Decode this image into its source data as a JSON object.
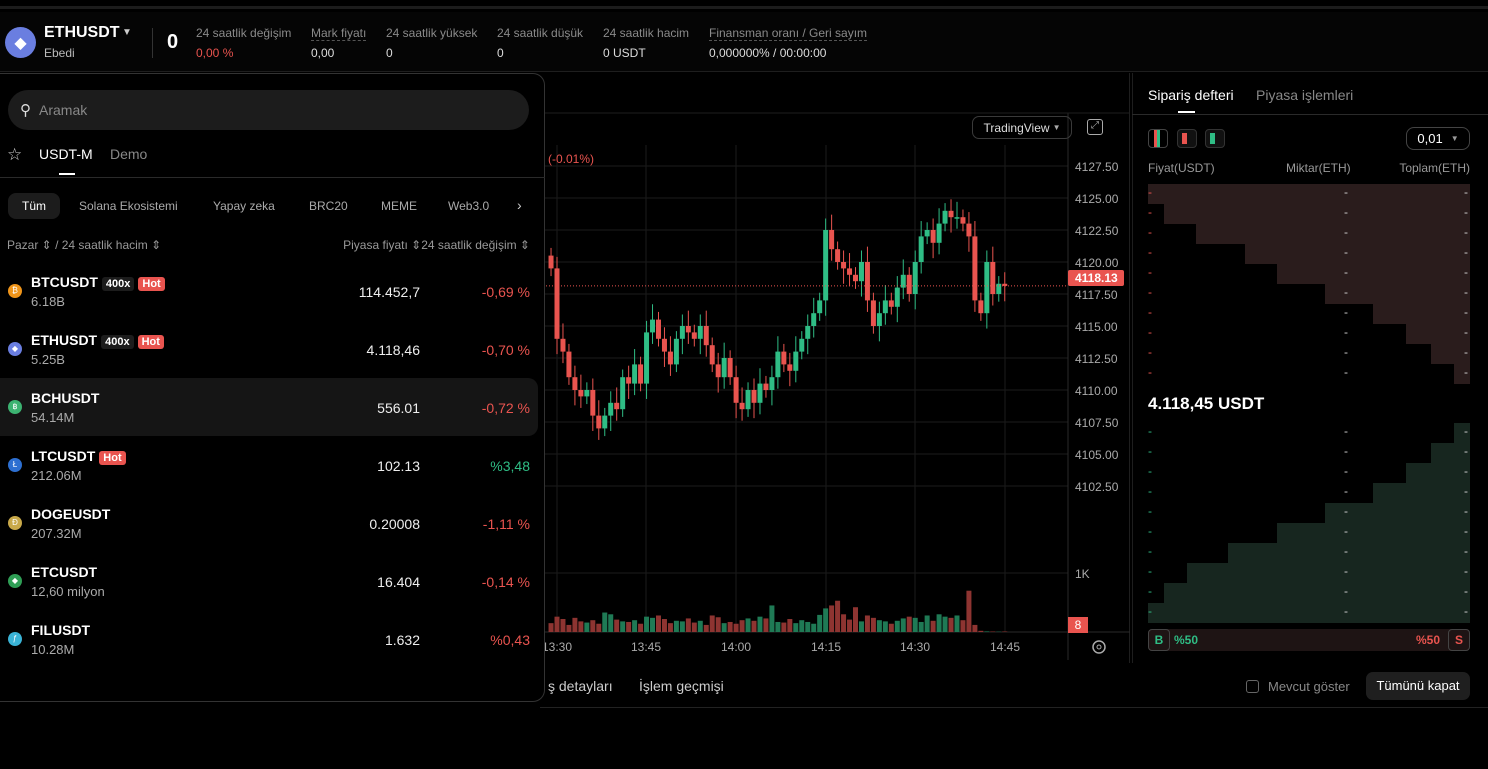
{
  "header": {
    "symbol": "ETHUSDT",
    "type": "Ebedi",
    "last_price": "0",
    "stats": [
      {
        "label": "24 saatlik değişim",
        "value": "0,00 %",
        "color": "red",
        "underline": false
      },
      {
        "label": "Mark fiyatı",
        "value": "0,00",
        "underline": true
      },
      {
        "label": "24 saatlik yüksek",
        "value": "0",
        "underline": false
      },
      {
        "label": "24 saatlik düşük",
        "value": "0",
        "underline": false
      },
      {
        "label": "24 saatlik hacim",
        "value": "0 USDT",
        "underline": false
      },
      {
        "label": "Finansman oranı / Geri sayım",
        "value": "0,000000% / 00:00:00",
        "underline": true
      }
    ]
  },
  "market_panel": {
    "search_placeholder": "Aramak",
    "tabs": [
      "USDT-M",
      "Demo"
    ],
    "categories": [
      "Tüm",
      "Solana Ekosistemi",
      "Yapay zeka",
      "BRC20",
      "MEME",
      "Web3.0"
    ],
    "col_left": "Pazar ⇕ / 24 saatlik hacim ⇕",
    "col_right": "Piyasa fiyatı ⇕24 saatlik değişim ⇕",
    "rows": [
      {
        "name": "BTCUSDT",
        "vol": "6.18B",
        "price": "114.452,7",
        "change": "-0,69 %",
        "dir": "down",
        "lev": "400x",
        "hot": "Hot",
        "icon": "₿",
        "color": "#f0951a"
      },
      {
        "name": "ETHUSDT",
        "vol": "5.25B",
        "price": "4.118,46",
        "change": "-0,70 %",
        "dir": "down",
        "lev": "400x",
        "hot": "Hot",
        "icon": "◆",
        "color": "#6a7ee0"
      },
      {
        "name": "BCHUSDT",
        "vol": "54.14M",
        "price": "556.01",
        "change": "-0,72 %",
        "dir": "down",
        "icon": "฿",
        "color": "#3cb371",
        "selected": true
      },
      {
        "name": "LTCUSDT",
        "vol": "212.06M",
        "price": "102.13",
        "change": "%3,48",
        "dir": "up",
        "hot": "Hot",
        "icon": "Ł",
        "color": "#2d6fd1"
      },
      {
        "name": "DOGEUSDT",
        "vol": "207.32M",
        "price": "0.20008",
        "change": "-1,11 %",
        "dir": "down",
        "icon": "Ð",
        "color": "#c9a94a"
      },
      {
        "name": "ETCUSDT",
        "vol": "12,60 milyon",
        "price": "16.404",
        "change": "-0,14 %",
        "dir": "down",
        "icon": "◆",
        "color": "#2f9e55"
      },
      {
        "name": "FILUSDT",
        "vol": "10.28M",
        "price": "1.632",
        "change": "%0,43",
        "dir": "down",
        "icon": "ƒ",
        "color": "#3ab3d6"
      }
    ]
  },
  "chart": {
    "source_label": "TradingView",
    "change_label": "(-0.01%)",
    "last_price_label": "4118.13",
    "volume_label": "8",
    "volume_axis": "1K",
    "price_ticks": [
      "4127.50",
      "4125.00",
      "4122.50",
      "4120.00",
      "4117.50",
      "4115.00",
      "4112.50",
      "4110.00",
      "4107.50",
      "4105.00",
      "4102.50"
    ],
    "time_ticks": [
      "13:30",
      "13:45",
      "14:00",
      "14:15",
      "14:30",
      "14:45"
    ]
  },
  "chart_data": {
    "type": "candlestick",
    "interval": "1m",
    "start": "13:29",
    "first_open": 4120.5,
    "last_price": 4118.13,
    "closes": [
      4119.5,
      4114,
      4113,
      4111,
      4110,
      4109.5,
      4110,
      4108,
      4107,
      4108,
      4109,
      4108.5,
      4111,
      4110.5,
      4112,
      4110.5,
      4114.5,
      4115.5,
      4114,
      4113,
      4112,
      4114,
      4115,
      4114.5,
      4114,
      4115,
      4113.5,
      4112,
      4111,
      4112.5,
      4111,
      4109,
      4108.5,
      4110,
      4109,
      4110.5,
      4110,
      4111,
      4113,
      4112,
      4111.5,
      4113,
      4114,
      4115,
      4116,
      4117,
      4122.5,
      4121,
      4120,
      4119.5,
      4119,
      4118.5,
      4120,
      4117,
      4115,
      4116,
      4117,
      4116.5,
      4118,
      4119,
      4117.5,
      4120,
      4122,
      4122.5,
      4121.5,
      4123,
      4124,
      4123.5,
      4123.5,
      4123,
      4122,
      4117,
      4116,
      4120,
      4117.5,
      4118.3,
      4118.13
    ],
    "volumes": [
      150,
      260,
      220,
      120,
      240,
      180,
      160,
      200,
      140,
      330,
      300,
      210,
      180,
      170,
      200,
      140,
      260,
      240,
      280,
      220,
      150,
      190,
      180,
      230,
      160,
      190,
      120,
      280,
      250,
      150,
      170,
      140,
      200,
      230,
      190,
      260,
      230,
      450,
      170,
      160,
      220,
      150,
      200,
      170,
      140,
      290,
      400,
      450,
      530,
      300,
      210,
      420,
      180,
      280,
      240,
      200,
      180,
      140,
      190,
      230,
      260,
      240,
      170,
      280,
      190,
      300,
      260,
      240,
      280,
      200,
      700,
      120,
      20,
      10,
      8,
      5,
      8
    ]
  },
  "orderbook": {
    "tabs": [
      "Sipariş defteri",
      "Piyasa işlemleri"
    ],
    "precision": "0,01",
    "headers": [
      "Fiyat(USDT)",
      "Miktar(ETH)",
      "Toplam(ETH)"
    ],
    "mid_price": "4.118,45 USDT",
    "placeholder": "-",
    "ask_depth": [
      1,
      0.95,
      0.85,
      0.7,
      0.6,
      0.45,
      0.3,
      0.2,
      0.12,
      0.05
    ],
    "bid_depth": [
      0.05,
      0.12,
      0.2,
      0.3,
      0.45,
      0.6,
      0.75,
      0.88,
      0.95,
      1
    ],
    "buy_label": "B",
    "sell_label": "S",
    "buy_pct": "%50",
    "sell_pct": "%50"
  },
  "bottom": {
    "tabs": [
      "ş detayları",
      "İşlem geçmişi"
    ],
    "show_current": "Mevcut göster",
    "close_all": "Tümünü kapat"
  }
}
